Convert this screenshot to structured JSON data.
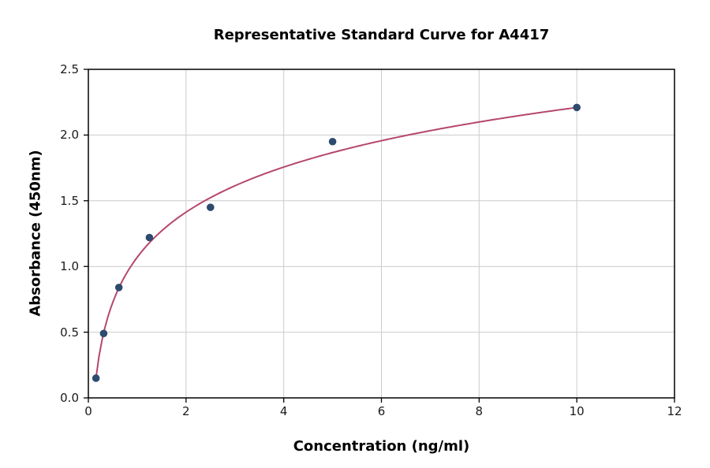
{
  "chart_data": {
    "type": "scatter",
    "title": "Representative Standard Curve for A4417",
    "xlabel": "Concentration (ng/ml)",
    "ylabel": "Absorbance (450nm)",
    "xlim": [
      0,
      12
    ],
    "ylim": [
      0,
      2.5
    ],
    "x_ticks": [
      0,
      2,
      4,
      6,
      8,
      10,
      12
    ],
    "x_tick_labels": [
      "0",
      "2",
      "4",
      "6",
      "8",
      "10",
      "12"
    ],
    "y_ticks": [
      0,
      0.5,
      1.0,
      1.5,
      2.0,
      2.5
    ],
    "y_tick_labels": [
      "0.0",
      "0.5",
      "1.0",
      "1.5",
      "2.0",
      "2.5"
    ],
    "grid": true,
    "legend": "none",
    "points": {
      "name": "standards",
      "x": [
        0.156,
        0.313,
        0.625,
        1.25,
        2.5,
        5,
        10
      ],
      "y": [
        0.15,
        0.49,
        0.84,
        1.22,
        1.45,
        1.95,
        2.21
      ]
    },
    "fit_curve": {
      "type": "logarithmic",
      "equation": "y = a + b*ln(x)",
      "a": 1.07,
      "b": 0.495,
      "x_min": 0.156,
      "x_max": 10
    },
    "colors": {
      "points": "#2e4a6e",
      "curve": "#b5476f",
      "grid": "#cccccc",
      "frame": "#000000",
      "background": "#ffffff"
    }
  }
}
